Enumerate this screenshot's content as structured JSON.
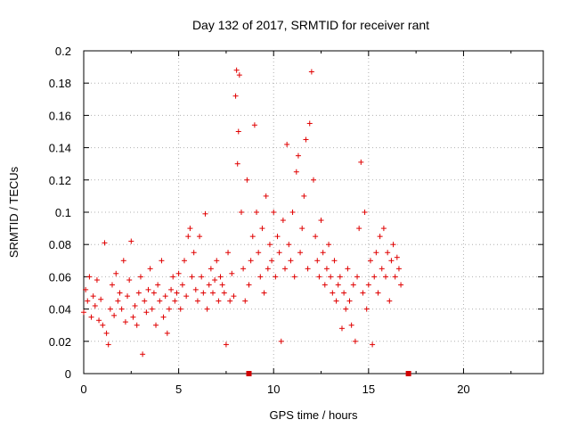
{
  "chart_data": {
    "type": "scatter",
    "title": "Day 132 of 2017, SRMTID for receiver rant",
    "xlabel": "GPS time / hours",
    "ylabel": "SRMTID / TECUs",
    "xlim": [
      0,
      24.2
    ],
    "ylim": [
      0,
      0.2
    ],
    "x_ticks": [
      "0",
      "5",
      "10",
      "15",
      "20"
    ],
    "y_ticks": [
      "0",
      "0.02",
      "0.04",
      "0.06",
      "0.08",
      "0.1",
      "0.12",
      "0.14",
      "0.16",
      "0.18",
      "0.2"
    ],
    "grid": true,
    "marker": "plus",
    "color": "#e00000",
    "series": [
      {
        "points": [
          [
            0.0,
            0.038
          ],
          [
            0.1,
            0.052
          ],
          [
            0.2,
            0.045
          ],
          [
            0.3,
            0.06
          ],
          [
            0.4,
            0.035
          ],
          [
            0.5,
            0.048
          ],
          [
            0.6,
            0.042
          ],
          [
            0.7,
            0.058
          ],
          [
            0.8,
            0.033
          ],
          [
            0.9,
            0.046
          ],
          [
            1.0,
            0.03
          ],
          [
            1.1,
            0.081
          ],
          [
            1.2,
            0.025
          ],
          [
            1.3,
            0.018
          ],
          [
            1.4,
            0.04
          ],
          [
            1.5,
            0.055
          ],
          [
            1.6,
            0.036
          ],
          [
            1.7,
            0.062
          ],
          [
            1.8,
            0.045
          ],
          [
            1.9,
            0.05
          ],
          [
            2.0,
            0.04
          ],
          [
            2.1,
            0.07
          ],
          [
            2.2,
            0.032
          ],
          [
            2.3,
            0.048
          ],
          [
            2.4,
            0.058
          ],
          [
            2.5,
            0.082
          ],
          [
            2.6,
            0.035
          ],
          [
            2.7,
            0.042
          ],
          [
            2.8,
            0.03
          ],
          [
            2.9,
            0.05
          ],
          [
            3.0,
            0.06
          ],
          [
            3.1,
            0.012
          ],
          [
            3.2,
            0.045
          ],
          [
            3.3,
            0.038
          ],
          [
            3.4,
            0.052
          ],
          [
            3.5,
            0.065
          ],
          [
            3.6,
            0.04
          ],
          [
            3.7,
            0.05
          ],
          [
            3.8,
            0.03
          ],
          [
            3.9,
            0.055
          ],
          [
            4.0,
            0.045
          ],
          [
            4.1,
            0.07
          ],
          [
            4.2,
            0.035
          ],
          [
            4.3,
            0.048
          ],
          [
            4.4,
            0.025
          ],
          [
            4.5,
            0.04
          ],
          [
            4.6,
            0.052
          ],
          [
            4.7,
            0.06
          ],
          [
            4.8,
            0.045
          ],
          [
            4.9,
            0.05
          ],
          [
            5.0,
            0.062
          ],
          [
            5.1,
            0.04
          ],
          [
            5.2,
            0.055
          ],
          [
            5.3,
            0.07
          ],
          [
            5.4,
            0.048
          ],
          [
            5.5,
            0.085
          ],
          [
            5.6,
            0.09
          ],
          [
            5.7,
            0.06
          ],
          [
            5.8,
            0.075
          ],
          [
            5.9,
            0.052
          ],
          [
            6.0,
            0.045
          ],
          [
            6.1,
            0.085
          ],
          [
            6.2,
            0.06
          ],
          [
            6.3,
            0.05
          ],
          [
            6.4,
            0.099
          ],
          [
            6.5,
            0.04
          ],
          [
            6.6,
            0.055
          ],
          [
            6.7,
            0.065
          ],
          [
            6.8,
            0.05
          ],
          [
            6.9,
            0.058
          ],
          [
            7.0,
            0.07
          ],
          [
            7.1,
            0.045
          ],
          [
            7.2,
            0.06
          ],
          [
            7.3,
            0.055
          ],
          [
            7.4,
            0.05
          ],
          [
            7.5,
            0.018
          ],
          [
            7.6,
            0.075
          ],
          [
            7.7,
            0.045
          ],
          [
            7.8,
            0.062
          ],
          [
            7.9,
            0.048
          ],
          [
            8.0,
            0.172
          ],
          [
            8.05,
            0.188
          ],
          [
            8.1,
            0.13
          ],
          [
            8.15,
            0.15
          ],
          [
            8.2,
            0.185
          ],
          [
            8.3,
            0.1
          ],
          [
            8.4,
            0.065
          ],
          [
            8.5,
            0.045
          ],
          [
            8.6,
            0.12
          ],
          [
            8.7,
            0.055
          ],
          [
            8.8,
            0.07
          ],
          [
            8.9,
            0.085
          ],
          [
            9.0,
            0.154
          ],
          [
            9.1,
            0.1
          ],
          [
            9.2,
            0.075
          ],
          [
            9.3,
            0.06
          ],
          [
            9.4,
            0.09
          ],
          [
            9.5,
            0.05
          ],
          [
            9.6,
            0.11
          ],
          [
            9.7,
            0.065
          ],
          [
            9.8,
            0.08
          ],
          [
            9.9,
            0.07
          ],
          [
            10.0,
            0.1
          ],
          [
            10.1,
            0.06
          ],
          [
            10.2,
            0.085
          ],
          [
            10.3,
            0.075
          ],
          [
            10.4,
            0.02
          ],
          [
            10.5,
            0.095
          ],
          [
            10.6,
            0.065
          ],
          [
            10.7,
            0.142
          ],
          [
            10.8,
            0.08
          ],
          [
            10.9,
            0.07
          ],
          [
            11.0,
            0.1
          ],
          [
            11.1,
            0.06
          ],
          [
            11.2,
            0.125
          ],
          [
            11.3,
            0.135
          ],
          [
            11.4,
            0.075
          ],
          [
            11.5,
            0.09
          ],
          [
            11.6,
            0.11
          ],
          [
            11.7,
            0.145
          ],
          [
            11.8,
            0.065
          ],
          [
            11.9,
            0.155
          ],
          [
            12.0,
            0.187
          ],
          [
            12.1,
            0.12
          ],
          [
            12.2,
            0.085
          ],
          [
            12.3,
            0.07
          ],
          [
            12.4,
            0.06
          ],
          [
            12.5,
            0.095
          ],
          [
            12.6,
            0.075
          ],
          [
            12.7,
            0.055
          ],
          [
            12.8,
            0.065
          ],
          [
            12.9,
            0.08
          ],
          [
            13.0,
            0.06
          ],
          [
            13.1,
            0.05
          ],
          [
            13.2,
            0.07
          ],
          [
            13.3,
            0.045
          ],
          [
            13.4,
            0.055
          ],
          [
            13.5,
            0.06
          ],
          [
            13.6,
            0.028
          ],
          [
            13.7,
            0.05
          ],
          [
            13.8,
            0.04
          ],
          [
            13.9,
            0.065
          ],
          [
            14.0,
            0.045
          ],
          [
            14.1,
            0.03
          ],
          [
            14.2,
            0.055
          ],
          [
            14.3,
            0.02
          ],
          [
            14.4,
            0.06
          ],
          [
            14.5,
            0.09
          ],
          [
            14.6,
            0.131
          ],
          [
            14.7,
            0.05
          ],
          [
            14.8,
            0.1
          ],
          [
            14.9,
            0.04
          ],
          [
            15.0,
            0.055
          ],
          [
            15.1,
            0.07
          ],
          [
            15.2,
            0.018
          ],
          [
            15.3,
            0.06
          ],
          [
            15.4,
            0.075
          ],
          [
            15.5,
            0.05
          ],
          [
            15.6,
            0.085
          ],
          [
            15.7,
            0.065
          ],
          [
            15.8,
            0.09
          ],
          [
            15.9,
            0.06
          ],
          [
            16.0,
            0.075
          ],
          [
            16.1,
            0.045
          ],
          [
            16.2,
            0.07
          ],
          [
            16.3,
            0.08
          ],
          [
            16.4,
            0.06
          ],
          [
            16.5,
            0.072
          ],
          [
            16.6,
            0.065
          ],
          [
            16.7,
            0.055
          ]
        ]
      }
    ],
    "axis_markers_x": [
      8.7,
      17.1
    ]
  }
}
